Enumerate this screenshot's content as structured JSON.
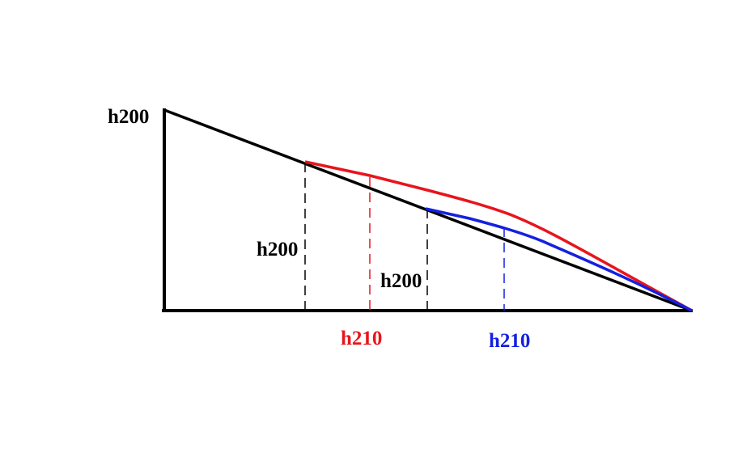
{
  "labels": [
    "h200",
    "h200",
    "h200",
    "h210",
    "h210"
  ]
}
